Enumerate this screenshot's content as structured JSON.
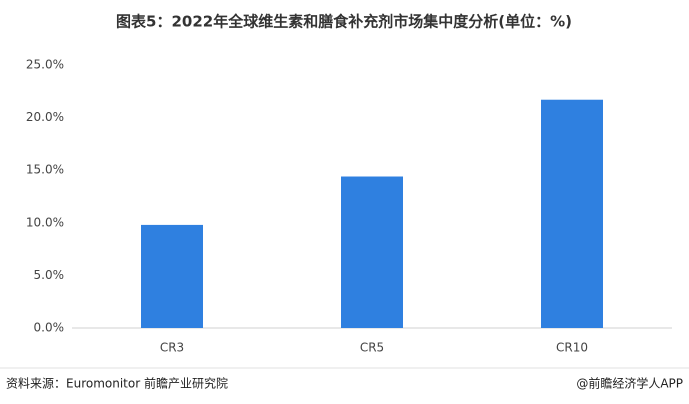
{
  "chart_data": {
    "type": "bar",
    "title": "图表5：2022年全球维生素和膳食补充剂市场集中度分析(单位：%)",
    "categories": [
      "CR3",
      "CR5",
      "CR10"
    ],
    "values": [
      9.8,
      14.4,
      21.7
    ],
    "color": "#2f80e0",
    "ylim": [
      0,
      25
    ],
    "yticks": [
      {
        "value": 0,
        "label": "0.0%"
      },
      {
        "value": 5,
        "label": "5.0%"
      },
      {
        "value": 10,
        "label": "10.0%"
      },
      {
        "value": 15,
        "label": "15.0%"
      },
      {
        "value": 20,
        "label": "20.0%"
      },
      {
        "value": 25,
        "label": "25.0%"
      }
    ],
    "grid": false,
    "source": "资料来源：Euromonitor 前瞻产业研究院",
    "credit": "@前瞻经济学人APP"
  }
}
